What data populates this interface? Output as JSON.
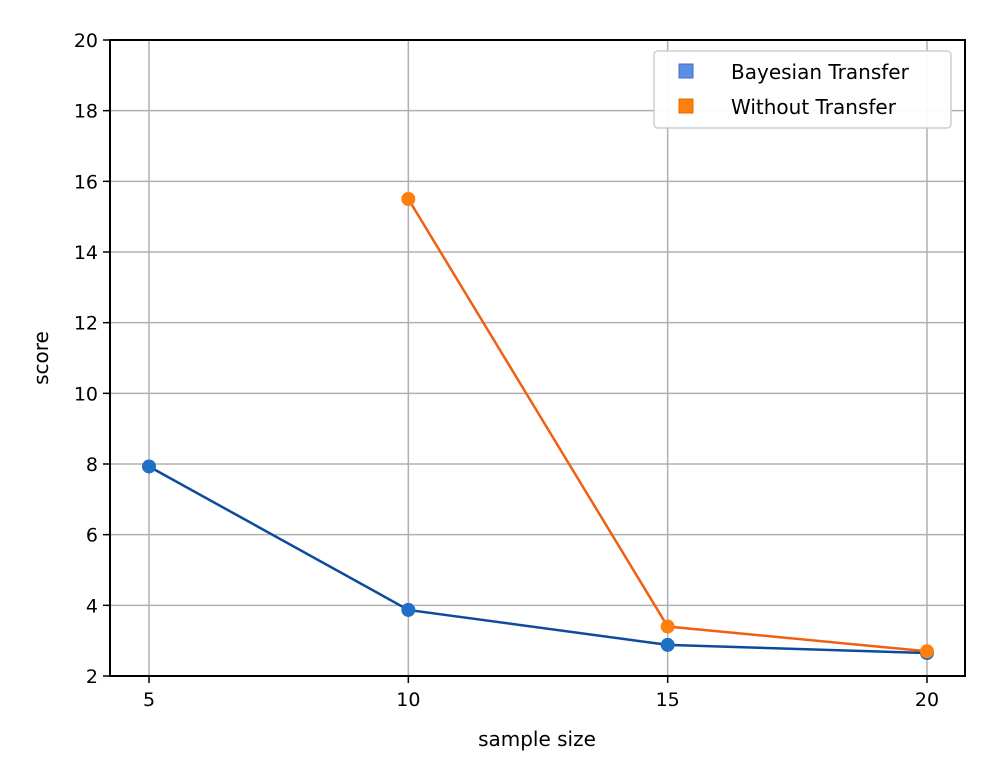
{
  "chart_data": {
    "type": "line",
    "title": "",
    "xlabel": "sample size",
    "ylabel": "score",
    "x": [
      5,
      10,
      15,
      20
    ],
    "xticks": [
      "5",
      "10",
      "15",
      "20"
    ],
    "yticks": [
      "2",
      "4",
      "6",
      "8",
      "10",
      "12",
      "14",
      "16",
      "18",
      "20"
    ],
    "xlim": [
      4.25,
      20.75
    ],
    "ylim": [
      2,
      20
    ],
    "grid": true,
    "legend_position": "upper right",
    "series": [
      {
        "name": "Bayesian Transfer",
        "x": [
          5,
          10,
          15,
          20
        ],
        "values": [
          7.93,
          3.87,
          2.88,
          2.65
        ],
        "line_color": "#0d4a9a",
        "marker_color": "#1f6fc4",
        "legend_color": "#5b8fe3"
      },
      {
        "name": "Without Transfer",
        "x": [
          10,
          15,
          20
        ],
        "values": [
          15.5,
          3.4,
          2.7
        ],
        "line_color": "#f06010",
        "marker_color": "#ff7f0e",
        "legend_color": "#ff7f0e"
      }
    ]
  },
  "legend": {
    "items": [
      {
        "label": "Bayesian Transfer",
        "color": "#5b8fe3"
      },
      {
        "label": "Without Transfer",
        "color": "#ff7f0e"
      }
    ]
  }
}
